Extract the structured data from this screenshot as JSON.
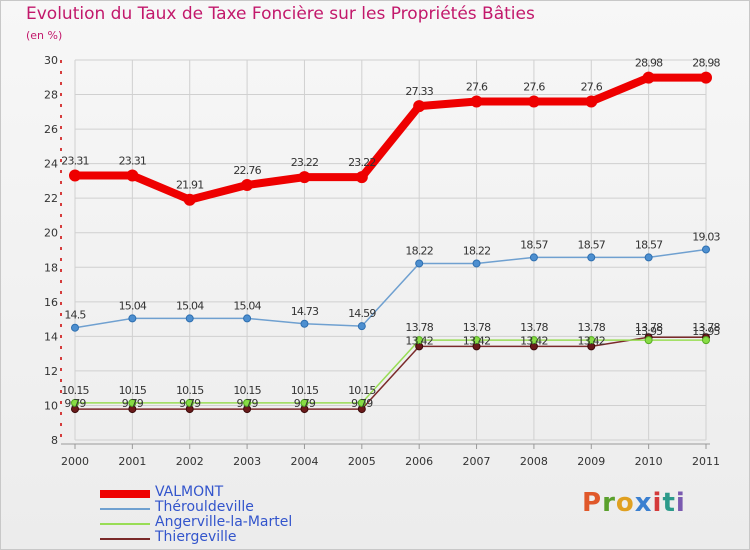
{
  "header": {
    "title": "Evolution du Taux de Taxe Foncière sur les Propriétés Bâties",
    "unit": "(en %)"
  },
  "brand": {
    "letters": [
      "P",
      "r",
      "o",
      "x",
      "i",
      "t",
      "i"
    ],
    "colors": [
      "#e0582a",
      "#5aa02c",
      "#e0a020",
      "#3a7fd0",
      "#d43a3a",
      "#2c9a8a",
      "#7a5ab0"
    ]
  },
  "chart_data": {
    "type": "line",
    "title": "Evolution du Taux de Taxe Foncière sur les Propriétés Bâties",
    "ylabel": "(en %)",
    "xlabel": "",
    "categories": [
      "2000",
      "2001",
      "2002",
      "2003",
      "2004",
      "2005",
      "2006",
      "2007",
      "2008",
      "2009",
      "2010",
      "2011"
    ],
    "ylim": [
      8,
      30
    ],
    "yticks": [
      "8",
      "10",
      "12",
      "14",
      "16",
      "18",
      "20",
      "22",
      "24",
      "26",
      "28",
      "30"
    ],
    "series": [
      {
        "name": "VALMONT",
        "color": "#ee0000",
        "values": [
          23.31,
          23.31,
          21.91,
          22.76,
          23.22,
          23.22,
          27.33,
          27.6,
          27.6,
          27.6,
          28.98,
          28.98
        ],
        "labels": [
          "23.31",
          "23.31",
          "21.91",
          "22.76",
          "23.22",
          "23.22",
          "27.33",
          "27.6",
          "27.6",
          "27.6",
          "28.98",
          "28.98"
        ]
      },
      {
        "name": "Thérouldeville",
        "color": "#6fa0d0",
        "values": [
          14.5,
          15.04,
          15.04,
          15.04,
          14.73,
          14.59,
          18.22,
          18.22,
          18.57,
          18.57,
          18.57,
          19.03
        ],
        "labels": [
          "14.5",
          "15.04",
          "15.04",
          "15.04",
          "14.73",
          "14.59",
          "18.22",
          "18.22",
          "18.57",
          "18.57",
          "18.57",
          "19.03"
        ]
      },
      {
        "name": "Angerville-la-Martel",
        "color": "#99dd55",
        "values": [
          10.15,
          10.15,
          10.15,
          10.15,
          10.15,
          10.15,
          13.78,
          13.78,
          13.78,
          13.78,
          13.78,
          13.78
        ],
        "labels": [
          "10.15",
          "10.15",
          "10.15",
          "10.15",
          "10.15",
          "10.15",
          "13.78",
          "13.78",
          "13.78",
          "13.78",
          "13.78",
          "13.78"
        ]
      },
      {
        "name": "Thiergeville",
        "color": "#7a2a2a",
        "values": [
          9.79,
          9.79,
          9.79,
          9.79,
          9.79,
          9.79,
          13.42,
          13.42,
          13.42,
          13.42,
          13.95,
          13.95
        ],
        "labels": [
          "9.79",
          "9.79",
          "9.79",
          "9.79",
          "9.79",
          "9.79",
          "13.42",
          "13.42",
          "13.42",
          "13.42",
          "13.95",
          "13.95"
        ]
      }
    ]
  }
}
